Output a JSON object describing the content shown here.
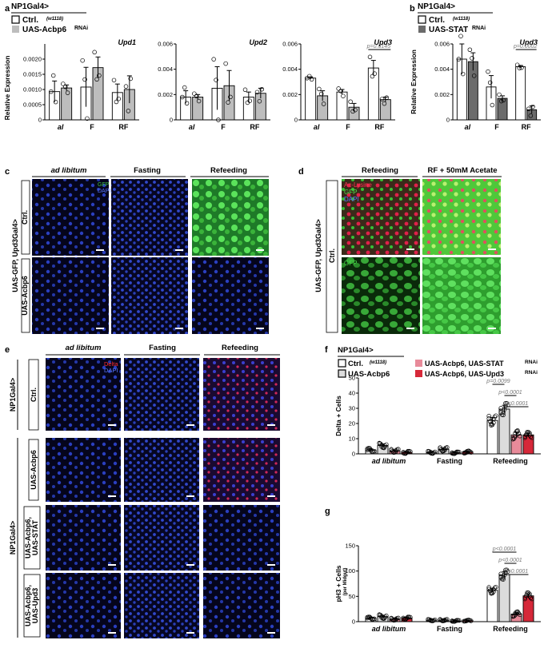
{
  "panels": {
    "a": {
      "letter": "a",
      "driver": "NP1Gal4>",
      "legend": [
        "Ctrl.",
        "UAS-Acbp6"
      ],
      "legend_sup": [
        "(w1118)",
        "RNAi"
      ],
      "ylabel": "Relative Expression"
    },
    "b": {
      "letter": "b",
      "driver": "NP1Gal4>",
      "legend": [
        "Ctrl.",
        "UAS-STAT"
      ],
      "legend_sup": [
        "(w1118)",
        "RNAi"
      ]
    },
    "c": {
      "letter": "c",
      "cols": [
        "ad libitum",
        "Fasting",
        "Refeeding"
      ],
      "rows": [
        "Ctrl.",
        "UAS-Acbp6"
      ],
      "rows_sup": [
        "(w1118)",
        "RNAi"
      ],
      "side": "UAS-GFP, Upd3Gal4>",
      "stains": [
        "GFP",
        "DAPI"
      ]
    },
    "d": {
      "letter": "d",
      "cols": [
        "Refeeding",
        "RF + 50mM Acetate"
      ],
      "row": "Ctrl.",
      "row_sup": "(w1118)",
      "side": "UAS-GFP, Upd3Gal4>",
      "stains": [
        "Ac-Lysine",
        "GFP",
        "DAPI"
      ],
      "stain2": "GFP"
    },
    "e": {
      "letter": "e",
      "cols": [
        "ad libitum",
        "Fasting",
        "Refeeding"
      ],
      "rows": [
        "Ctrl.",
        "UAS-Acbp6",
        "UAS-Acbp6,",
        "UAS-Acbp6,"
      ],
      "rows_b": [
        "",
        "",
        "UAS-STAT",
        "UAS-Upd3"
      ],
      "rows_sup": [
        "(w1118)",
        "",
        "RNAi",
        "RNAi"
      ],
      "side": "NP1Gal4>",
      "stains": [
        "Delta",
        "DAPI"
      ]
    },
    "f": {
      "letter": "f",
      "driver": "NP1Gal4>",
      "legend": [
        "Ctrl.",
        "UAS-Acbp6",
        "UAS-Acbp6, UAS-STAT",
        "UAS-Acbp6, UAS-Upd3"
      ],
      "legend_sup": [
        "(w1118)",
        "",
        "RNAi",
        "RNAi"
      ],
      "ylabel": "Delta + Cells"
    },
    "g": {
      "letter": "g",
      "ylabel": "pH3 + Cells",
      "ylabel_sub": "(per Midgut)"
    }
  },
  "colors": {
    "ctrl": "#ffffff",
    "rnai": "#bdbdbd",
    "stat": "#6b6b6b",
    "acbp6": "#dcdcdc",
    "acbp6_stat": "#e88b9a",
    "acbp6_upd3": "#d62839",
    "dapi": "#2a3fbf",
    "gfp": "#3fc23f",
    "delta": "#e02020",
    "aclys": "#e0204a"
  },
  "chart_data": [
    {
      "id": "a-upd1",
      "type": "bar",
      "title": "Upd1",
      "categories": [
        "al",
        "F",
        "RF"
      ],
      "ylim": [
        0,
        0.0025
      ],
      "yticks": [
        "0",
        "0.0005",
        "0.0010",
        "0.0015",
        "0.0020"
      ],
      "series": [
        {
          "name": "Ctrl.",
          "values": [
            0.00093,
            0.00108,
            0.0009
          ],
          "err": [
            0.00035,
            0.00065,
            0.00028
          ]
        },
        {
          "name": "UAS-Acbp6",
          "values": [
            0.00105,
            0.00172,
            0.001
          ],
          "err": [
            0.0001,
            0.00035,
            0.00045
          ]
        }
      ]
    },
    {
      "id": "a-upd2",
      "type": "bar",
      "title": "Upd2",
      "categories": [
        "al",
        "F",
        "RF"
      ],
      "ylim": [
        0,
        0.006
      ],
      "yticks": [
        "0",
        "0.002",
        "0.004",
        "0.006"
      ],
      "series": [
        {
          "name": "Ctrl.",
          "values": [
            0.0018,
            0.0025,
            0.0018
          ],
          "err": [
            0.0005,
            0.0017,
            0.0004
          ]
        },
        {
          "name": "UAS-Acbp6",
          "values": [
            0.0018,
            0.0027,
            0.0021
          ],
          "err": [
            0.0002,
            0.0012,
            0.0004
          ]
        }
      ]
    },
    {
      "id": "a-upd3",
      "type": "bar",
      "title": "Upd3",
      "categories": [
        "al",
        "F",
        "RF"
      ],
      "ylim": [
        0,
        0.006
      ],
      "yticks": [
        "0",
        "0.002",
        "0.004",
        "0.006"
      ],
      "series": [
        {
          "name": "Ctrl.",
          "values": [
            0.0033,
            0.0022,
            0.0041
          ],
          "err": [
            0.0001,
            0.0002,
            0.0006
          ]
        },
        {
          "name": "UAS-Acbp6",
          "values": [
            0.0019,
            0.001,
            0.0016
          ],
          "err": [
            0.0004,
            0.0003,
            0.0002
          ]
        }
      ],
      "annotation": "p=0.0145"
    },
    {
      "id": "b-upd3",
      "type": "bar",
      "title": "Upd3",
      "categories": [
        "al",
        "F",
        "RF"
      ],
      "ylim": [
        0,
        0.006
      ],
      "yticks": [
        "0",
        "0.002",
        "0.004",
        "0.006"
      ],
      "ylabel": "Relative Expression",
      "series": [
        {
          "name": "Ctrl.",
          "values": [
            0.0048,
            0.0026,
            0.0042
          ],
          "err": [
            0.0012,
            0.0009,
            0.0001
          ]
        },
        {
          "name": "UAS-STAT",
          "values": [
            0.0046,
            0.0017,
            0.0008
          ],
          "err": [
            0.0007,
            0.0002,
            0.0003
          ]
        }
      ],
      "annotation": "p=0.0002"
    },
    {
      "id": "f",
      "type": "bar",
      "categories": [
        "ad libitum",
        "Fasting",
        "Refeeding"
      ],
      "ylim": [
        0,
        50
      ],
      "yticks": [
        "0",
        "10",
        "20",
        "30",
        "40",
        "50"
      ],
      "ylabel": "Delta + Cells",
      "series": [
        {
          "name": "Ctrl.",
          "values": [
            2.5,
            1.0,
            22.0
          ],
          "err": [
            0.8,
            0.5,
            2.0
          ]
        },
        {
          "name": "UAS-Acbp6",
          "values": [
            5.5,
            3.0,
            29.5
          ],
          "err": [
            1.0,
            0.8,
            2.5
          ]
        },
        {
          "name": "UAS-Acbp6, UAS-STAT",
          "values": [
            2.0,
            0.7,
            12.5
          ],
          "err": [
            0.7,
            0.4,
            1.8
          ]
        },
        {
          "name": "UAS-Acbp6, UAS-Upd3",
          "values": [
            1.0,
            1.2,
            12.5
          ],
          "err": [
            0.5,
            0.5,
            1.2
          ]
        }
      ],
      "annotations": [
        "p=0.0099",
        "p<0.0001",
        "p<0.0001"
      ]
    },
    {
      "id": "g",
      "type": "bar",
      "categories": [
        "ad libitum",
        "Fasting",
        "Refeeding"
      ],
      "ylim": [
        0,
        150
      ],
      "yticks": [
        "0",
        "50",
        "100",
        "150"
      ],
      "ylabel": "pH3 + Cells",
      "series": [
        {
          "name": "Ctrl.",
          "values": [
            7,
            3,
            62
          ],
          "err": [
            1.5,
            1.0,
            4
          ]
        },
        {
          "name": "UAS-Acbp6",
          "values": [
            10,
            3,
            93
          ],
          "err": [
            2.5,
            1.0,
            6
          ]
        },
        {
          "name": "UAS-Acbp6, UAS-STAT",
          "values": [
            5,
            1.5,
            15
          ],
          "err": [
            1.5,
            0.8,
            3
          ]
        },
        {
          "name": "UAS-Acbp6, UAS-Upd3",
          "values": [
            7,
            2,
            51
          ],
          "err": [
            1.5,
            0.8,
            4
          ]
        }
      ],
      "annotations": [
        "p<0.0001",
        "p<0.0001",
        "p<0.0001"
      ]
    }
  ]
}
